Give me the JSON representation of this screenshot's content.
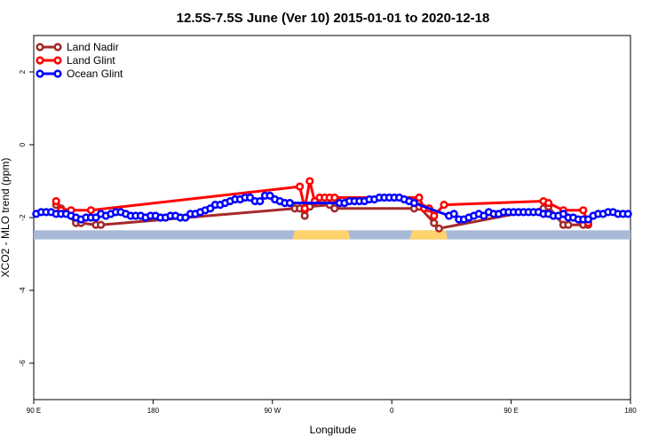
{
  "chart_data": {
    "type": "line",
    "title": "12.5S-7.5S June (Ver 10)   2015-01-01 to 2020-12-18",
    "xlabel": "Longitude",
    "ylabel": "XCO2 - MLO trend (ppm)",
    "xlim": [
      -90,
      210
    ],
    "ylim": [
      -7,
      3
    ],
    "x_ticks": [
      {
        "value": -90,
        "label": "90 E"
      },
      {
        "value": -30,
        "label": "180"
      },
      {
        "value": 30,
        "label": "90 W"
      },
      {
        "value": 90,
        "label": "0"
      },
      {
        "value": 150,
        "label": "90 E"
      },
      {
        "value": 210,
        "label": "180"
      }
    ],
    "y_ticks": [
      {
        "value": 2,
        "label": "2"
      },
      {
        "value": 0,
        "label": "0"
      },
      {
        "value": -2,
        "label": "-2"
      },
      {
        "value": -4,
        "label": "-4"
      },
      {
        "value": -6,
        "label": "-6"
      }
    ],
    "land_band": {
      "y_top": -2.35,
      "y_bottom": -2.6,
      "ocean_color": "#a7b9d6",
      "land_color": "#ffd36b"
    },
    "land_segments": [
      [
        40,
        69
      ],
      [
        99,
        118
      ]
    ],
    "legend": {
      "position": "top-left"
    },
    "series": [
      {
        "name": "Land Nadir",
        "color": "#a52a2a",
        "points": [
          [
            -78.75,
            -1.65
          ],
          [
            -76.25,
            -1.75
          ],
          [
            -68.75,
            -2.15
          ],
          [
            -66.25,
            -2.15
          ],
          [
            -58.75,
            -2.2
          ],
          [
            -56.25,
            -2.2
          ],
          [
            41.25,
            -1.75
          ],
          [
            43.75,
            -1.75
          ],
          [
            46.25,
            -1.95
          ],
          [
            48.75,
            -1.7
          ],
          [
            58.75,
            -1.65
          ],
          [
            61.25,
            -1.75
          ],
          [
            101.25,
            -1.75
          ],
          [
            103.75,
            -1.7
          ],
          [
            111.25,
            -2.15
          ],
          [
            113.75,
            -2.3
          ],
          [
            166.25,
            -1.75
          ],
          [
            168.75,
            -1.7
          ],
          [
            176.25,
            -2.2
          ],
          [
            178.75,
            -2.2
          ],
          [
            186.25,
            -2.2
          ],
          [
            188.75,
            -2.2
          ]
        ]
      },
      {
        "name": "Land Glint",
        "color": "#ff0000",
        "points": [
          [
            -78.75,
            -1.55
          ],
          [
            -76.25,
            -1.8
          ],
          [
            -73.75,
            -1.85
          ],
          [
            -71.25,
            -1.8
          ],
          [
            -61.25,
            -1.8
          ],
          [
            43.75,
            -1.15
          ],
          [
            46.25,
            -1.75
          ],
          [
            48.75,
            -1.0
          ],
          [
            51.25,
            -1.55
          ],
          [
            53.75,
            -1.45
          ],
          [
            56.25,
            -1.45
          ],
          [
            58.75,
            -1.45
          ],
          [
            61.25,
            -1.45
          ],
          [
            103.75,
            -1.45
          ],
          [
            106.25,
            -1.75
          ],
          [
            108.75,
            -1.75
          ],
          [
            111.25,
            -1.95
          ],
          [
            116.25,
            -1.65
          ],
          [
            166.25,
            -1.55
          ],
          [
            168.75,
            -1.6
          ],
          [
            176.25,
            -1.8
          ],
          [
            186.25,
            -1.8
          ],
          [
            188.75,
            -2.15
          ]
        ]
      },
      {
        "name": "Ocean Glint",
        "color": "#0000ff",
        "points": [
          [
            -88.75,
            -1.9
          ],
          [
            -86.25,
            -1.85
          ],
          [
            -83.75,
            -1.85
          ],
          [
            -81.25,
            -1.85
          ],
          [
            -78.75,
            -1.9
          ],
          [
            -76.25,
            -1.9
          ],
          [
            -73.75,
            -1.9
          ],
          [
            -71.25,
            -1.95
          ],
          [
            -68.75,
            -2.0
          ],
          [
            -66.25,
            -2.05
          ],
          [
            -63.75,
            -2.0
          ],
          [
            -61.25,
            -2.0
          ],
          [
            -58.75,
            -2.0
          ],
          [
            -56.25,
            -1.9
          ],
          [
            -53.75,
            -1.95
          ],
          [
            -51.25,
            -1.9
          ],
          [
            -48.75,
            -1.85
          ],
          [
            -46.25,
            -1.85
          ],
          [
            -43.75,
            -1.9
          ],
          [
            -41.25,
            -1.95
          ],
          [
            -38.75,
            -1.95
          ],
          [
            -36.25,
            -1.95
          ],
          [
            -33.75,
            -2.0
          ],
          [
            -31.25,
            -1.95
          ],
          [
            -28.75,
            -1.95
          ],
          [
            -26.25,
            -2.0
          ],
          [
            -23.75,
            -2.0
          ],
          [
            -21.25,
            -1.95
          ],
          [
            -18.75,
            -1.95
          ],
          [
            -16.25,
            -2.0
          ],
          [
            -13.75,
            -2.0
          ],
          [
            -11.25,
            -1.9
          ],
          [
            -8.75,
            -1.9
          ],
          [
            -6.25,
            -1.85
          ],
          [
            -3.75,
            -1.8
          ],
          [
            -1.25,
            -1.75
          ],
          [
            1.25,
            -1.65
          ],
          [
            3.75,
            -1.65
          ],
          [
            6.25,
            -1.6
          ],
          [
            8.75,
            -1.55
          ],
          [
            11.25,
            -1.5
          ],
          [
            13.75,
            -1.5
          ],
          [
            16.25,
            -1.45
          ],
          [
            18.75,
            -1.45
          ],
          [
            21.25,
            -1.55
          ],
          [
            23.75,
            -1.55
          ],
          [
            26.25,
            -1.4
          ],
          [
            28.75,
            -1.4
          ],
          [
            31.25,
            -1.5
          ],
          [
            33.75,
            -1.55
          ],
          [
            36.25,
            -1.6
          ],
          [
            38.75,
            -1.6
          ],
          [
            63.75,
            -1.6
          ],
          [
            66.25,
            -1.6
          ],
          [
            68.75,
            -1.55
          ],
          [
            71.25,
            -1.55
          ],
          [
            73.75,
            -1.55
          ],
          [
            76.25,
            -1.55
          ],
          [
            78.75,
            -1.5
          ],
          [
            81.25,
            -1.5
          ],
          [
            83.75,
            -1.45
          ],
          [
            86.25,
            -1.45
          ],
          [
            88.75,
            -1.45
          ],
          [
            91.25,
            -1.45
          ],
          [
            93.75,
            -1.45
          ],
          [
            96.25,
            -1.5
          ],
          [
            98.75,
            -1.55
          ],
          [
            101.25,
            -1.6
          ],
          [
            118.75,
            -1.95
          ],
          [
            121.25,
            -1.9
          ],
          [
            123.75,
            -2.05
          ],
          [
            126.25,
            -2.05
          ],
          [
            128.75,
            -2.0
          ],
          [
            131.25,
            -1.95
          ],
          [
            133.75,
            -1.9
          ],
          [
            136.25,
            -1.95
          ],
          [
            138.75,
            -1.85
          ],
          [
            141.25,
            -1.9
          ],
          [
            143.75,
            -1.9
          ],
          [
            146.25,
            -1.85
          ],
          [
            148.75,
            -1.85
          ],
          [
            151.25,
            -1.85
          ],
          [
            153.75,
            -1.85
          ],
          [
            156.25,
            -1.85
          ],
          [
            158.75,
            -1.85
          ],
          [
            161.25,
            -1.85
          ],
          [
            163.75,
            -1.85
          ],
          [
            166.25,
            -1.9
          ],
          [
            168.75,
            -1.9
          ],
          [
            171.25,
            -1.95
          ],
          [
            173.75,
            -1.95
          ],
          [
            176.25,
            -1.9
          ],
          [
            178.75,
            -2.0
          ],
          [
            181.25,
            -2.0
          ],
          [
            183.75,
            -2.05
          ],
          [
            186.25,
            -2.05
          ],
          [
            188.75,
            -2.05
          ],
          [
            191.25,
            -1.95
          ],
          [
            193.75,
            -1.9
          ],
          [
            196.25,
            -1.9
          ],
          [
            198.75,
            -1.85
          ],
          [
            201.25,
            -1.85
          ],
          [
            203.75,
            -1.9
          ],
          [
            206.25,
            -1.9
          ],
          [
            208.75,
            -1.9
          ]
        ]
      }
    ]
  }
}
